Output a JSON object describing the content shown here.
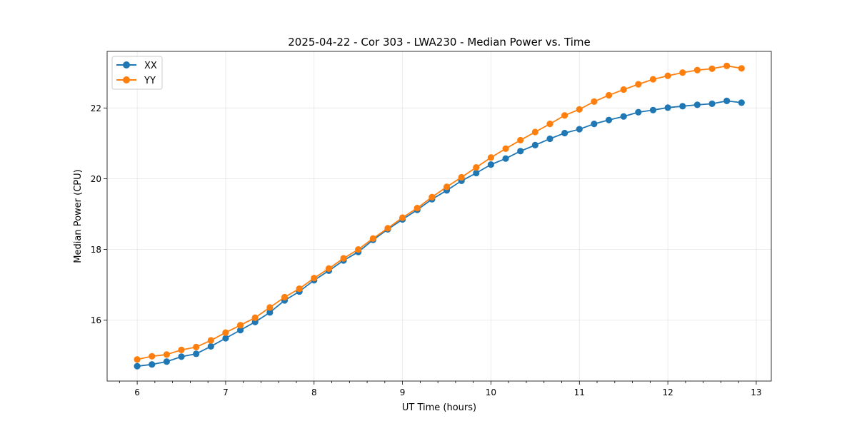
{
  "chart_data": {
    "type": "line",
    "title": "2025-04-22 - Cor 303 - LWA230 - Median Power vs. Time",
    "xlabel": "UT Time (hours)",
    "ylabel": "Median Power (CPU)",
    "xlim": [
      5.66,
      13.17
    ],
    "ylim": [
      14.28,
      23.6
    ],
    "xticks": [
      6,
      7,
      8,
      9,
      10,
      11,
      12,
      13
    ],
    "yticks": [
      16,
      18,
      20,
      22
    ],
    "minor_xticks": [
      5.8,
      6.2,
      6.4,
      6.6,
      6.8,
      7.2,
      7.4,
      7.6,
      7.8,
      8.2,
      8.4,
      8.6,
      8.8,
      9.2,
      9.4,
      9.6,
      9.8,
      10.2,
      10.4,
      10.6,
      10.8,
      11.2,
      11.4,
      11.6,
      11.8,
      12.2,
      12.4,
      12.6,
      12.8,
      13.2
    ],
    "grid": true,
    "legend_position": "top-left",
    "x": [
      6.0,
      6.1667,
      6.3333,
      6.5,
      6.6667,
      6.8333,
      7.0,
      7.1667,
      7.3333,
      7.5,
      7.6667,
      7.8333,
      8.0,
      8.1667,
      8.3333,
      8.5,
      8.6667,
      8.8333,
      9.0,
      9.1667,
      9.3333,
      9.5,
      9.6667,
      9.8333,
      10.0,
      10.1667,
      10.3333,
      10.5,
      10.6667,
      10.8333,
      11.0,
      11.1667,
      11.3333,
      11.5,
      11.6667,
      11.8333,
      12.0,
      12.1667,
      12.3333,
      12.5,
      12.6667,
      12.8333
    ],
    "series": [
      {
        "name": "XX",
        "color": "#1f77b4",
        "values": [
          14.7,
          14.75,
          14.83,
          14.97,
          15.05,
          15.26,
          15.49,
          15.72,
          15.95,
          16.22,
          16.56,
          16.81,
          17.13,
          17.4,
          17.69,
          17.93,
          18.27,
          18.57,
          18.85,
          19.12,
          19.42,
          19.67,
          19.94,
          20.16,
          20.4,
          20.57,
          20.78,
          20.95,
          21.13,
          21.29,
          21.4,
          21.55,
          21.66,
          21.76,
          21.88,
          21.94,
          22.01,
          22.05,
          22.09,
          22.12,
          22.2,
          22.15
        ]
      },
      {
        "name": "YY",
        "color": "#ff7f0e",
        "values": [
          14.89,
          14.98,
          15.03,
          15.16,
          15.24,
          15.43,
          15.65,
          15.86,
          16.07,
          16.36,
          16.65,
          16.89,
          17.19,
          17.46,
          17.75,
          18.0,
          18.31,
          18.6,
          18.9,
          19.17,
          19.48,
          19.77,
          20.04,
          20.32,
          20.6,
          20.85,
          21.09,
          21.32,
          21.55,
          21.79,
          21.96,
          22.18,
          22.36,
          22.52,
          22.67,
          22.81,
          22.91,
          23.0,
          23.07,
          23.11,
          23.19,
          23.12
        ]
      }
    ]
  }
}
